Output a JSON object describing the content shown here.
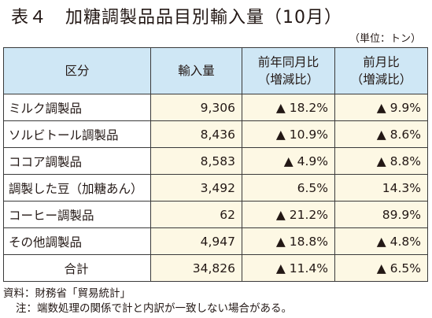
{
  "title": "表４　加糖調製品品目別輸入量（10月）",
  "unit": "（単位：トン）",
  "table": {
    "headers": {
      "category": "区分",
      "volume": "輸入量",
      "yoy_line1": "前年同月比",
      "yoy_line2": "（増減比）",
      "mom_line1": "前月比",
      "mom_line2": "（増減比）"
    },
    "rows": [
      {
        "category": "ミルク調製品",
        "volume": "9,306",
        "yoy": "▲ 18.2%",
        "mom": "▲ 9.9%"
      },
      {
        "category": "ソルビトール調製品",
        "volume": "8,436",
        "yoy": "▲ 10.9%",
        "mom": "▲ 8.6%"
      },
      {
        "category": "ココア調製品",
        "volume": "8,583",
        "yoy": "▲ 4.9%",
        "mom": "▲ 8.8%"
      },
      {
        "category": "調製した豆（加糖あん）",
        "volume": "3,492",
        "yoy": "6.5%",
        "mom": "14.3%"
      },
      {
        "category": "コーヒー調製品",
        "volume": "62",
        "yoy": "▲ 21.2%",
        "mom": "89.9%"
      },
      {
        "category": "その他調製品",
        "volume": "4,947",
        "yoy": "▲ 18.8%",
        "mom": "▲ 4.8%"
      }
    ],
    "total": {
      "category": "合計",
      "volume": "34,826",
      "yoy": "▲ 11.4%",
      "mom": "▲ 6.5%"
    }
  },
  "footer": {
    "source": "資料：財務省「貿易統計」",
    "note": "注：端数処理の関係で計と内訳が一致しない場合がある。"
  },
  "colors": {
    "header_bg": "#cfe7f5",
    "value_bg": "#fdf8e4",
    "border": "#3a3a3a"
  }
}
